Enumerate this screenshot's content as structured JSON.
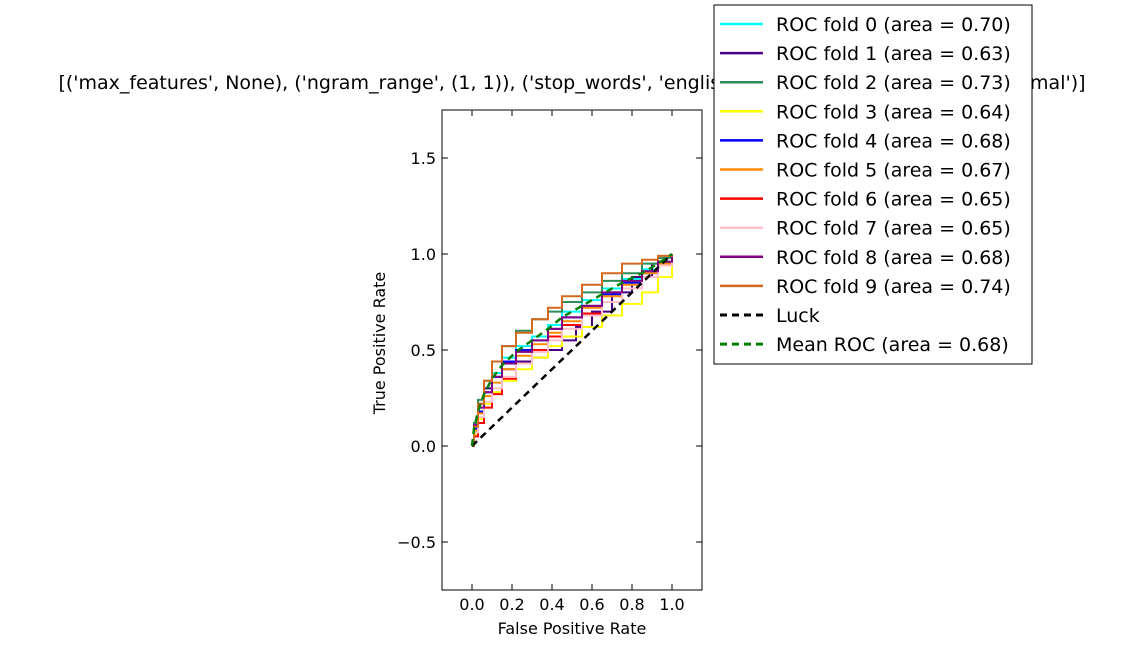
{
  "chart_data": {
    "type": "line",
    "title": "[('max_features', None), ('ngram_range', (1, 1)), ('stop_words', 'english'), ('binary', False), ('norm', 'normal')]",
    "xlabel": "False Positive Rate",
    "ylabel": "True Positive Rate",
    "xlim": [
      -0.15,
      1.15
    ],
    "ylim": [
      -0.75,
      1.75
    ],
    "xticks": [
      "0.0",
      "0.2",
      "0.4",
      "0.6",
      "0.8",
      "1.0"
    ],
    "yticks": [
      "−0.5",
      "0.0",
      "0.5",
      "1.0",
      "1.5"
    ],
    "xtick_values": [
      0.0,
      0.2,
      0.4,
      0.6,
      0.8,
      1.0
    ],
    "ytick_values": [
      -0.5,
      0.0,
      0.5,
      1.0,
      1.5
    ],
    "grid": false,
    "legend_placement": "upper-right-outside",
    "series": [
      {
        "name": "ROC fold 0 (area = 0.70)",
        "color": "#00ffff",
        "style": "solid",
        "x": [
          0,
          0.01,
          0.03,
          0.06,
          0.1,
          0.15,
          0.22,
          0.3,
          0.38,
          0.45,
          0.55,
          0.65,
          0.75,
          0.85,
          0.93,
          1.0
        ],
        "y": [
          0,
          0.1,
          0.2,
          0.3,
          0.38,
          0.46,
          0.52,
          0.57,
          0.63,
          0.7,
          0.76,
          0.82,
          0.87,
          0.92,
          0.96,
          1.0
        ]
      },
      {
        "name": "ROC fold 1 (area = 0.63)",
        "color": "#4b0082",
        "style": "solid",
        "x": [
          0,
          0.01,
          0.03,
          0.06,
          0.1,
          0.15,
          0.22,
          0.3,
          0.38,
          0.45,
          0.52,
          0.6,
          0.7,
          0.8,
          0.9,
          1.0
        ],
        "y": [
          0,
          0.12,
          0.22,
          0.3,
          0.36,
          0.4,
          0.44,
          0.46,
          0.5,
          0.55,
          0.62,
          0.7,
          0.8,
          0.88,
          0.95,
          1.0
        ]
      },
      {
        "name": "ROC fold 2 (area = 0.73)",
        "color": "#2e8b57",
        "style": "solid",
        "x": [
          0,
          0.01,
          0.03,
          0.06,
          0.1,
          0.15,
          0.22,
          0.3,
          0.38,
          0.45,
          0.55,
          0.65,
          0.75,
          0.85,
          0.93,
          1.0
        ],
        "y": [
          0,
          0.12,
          0.24,
          0.34,
          0.44,
          0.52,
          0.6,
          0.66,
          0.7,
          0.75,
          0.8,
          0.86,
          0.9,
          0.95,
          0.98,
          1.0
        ]
      },
      {
        "name": "ROC fold 3 (area = 0.64)",
        "color": "#ffff00",
        "style": "solid",
        "x": [
          0,
          0.01,
          0.03,
          0.06,
          0.1,
          0.15,
          0.22,
          0.3,
          0.38,
          0.45,
          0.55,
          0.65,
          0.75,
          0.85,
          0.93,
          1.0
        ],
        "y": [
          0,
          0.06,
          0.14,
          0.22,
          0.28,
          0.34,
          0.4,
          0.46,
          0.52,
          0.57,
          0.62,
          0.68,
          0.74,
          0.8,
          0.88,
          1.0
        ]
      },
      {
        "name": "ROC fold 4 (area = 0.68)",
        "color": "#0000ff",
        "style": "solid",
        "x": [
          0,
          0.01,
          0.03,
          0.06,
          0.1,
          0.15,
          0.22,
          0.3,
          0.38,
          0.45,
          0.55,
          0.65,
          0.75,
          0.85,
          0.93,
          1.0
        ],
        "y": [
          0,
          0.09,
          0.18,
          0.28,
          0.36,
          0.44,
          0.5,
          0.55,
          0.61,
          0.67,
          0.73,
          0.79,
          0.85,
          0.9,
          0.95,
          1.0
        ]
      },
      {
        "name": "ROC fold 5 (area = 0.67)",
        "color": "#ff8c00",
        "style": "solid",
        "x": [
          0,
          0.01,
          0.03,
          0.06,
          0.1,
          0.15,
          0.22,
          0.3,
          0.38,
          0.45,
          0.55,
          0.65,
          0.75,
          0.85,
          0.93,
          1.0
        ],
        "y": [
          0,
          0.08,
          0.17,
          0.26,
          0.33,
          0.4,
          0.47,
          0.53,
          0.59,
          0.65,
          0.72,
          0.78,
          0.84,
          0.9,
          0.95,
          1.0
        ]
      },
      {
        "name": "ROC fold 6 (area = 0.65)",
        "color": "#ff0000",
        "style": "solid",
        "x": [
          0,
          0.01,
          0.03,
          0.06,
          0.1,
          0.15,
          0.22,
          0.3,
          0.38,
          0.45,
          0.55,
          0.65,
          0.75,
          0.85,
          0.93,
          1.0
        ],
        "y": [
          0,
          0.05,
          0.12,
          0.2,
          0.27,
          0.35,
          0.43,
          0.5,
          0.57,
          0.63,
          0.69,
          0.75,
          0.82,
          0.88,
          0.94,
          1.0
        ]
      },
      {
        "name": "ROC fold 7 (area = 0.65)",
        "color": "#ffc0cb",
        "style": "solid",
        "x": [
          0,
          0.01,
          0.03,
          0.06,
          0.1,
          0.15,
          0.22,
          0.3,
          0.38,
          0.45,
          0.55,
          0.65,
          0.75,
          0.85,
          0.93,
          1.0
        ],
        "y": [
          0,
          0.07,
          0.15,
          0.23,
          0.3,
          0.36,
          0.43,
          0.49,
          0.55,
          0.61,
          0.68,
          0.75,
          0.82,
          0.88,
          0.94,
          1.0
        ]
      },
      {
        "name": "ROC fold 8 (area = 0.68)",
        "color": "#800080",
        "style": "solid",
        "x": [
          0,
          0.01,
          0.03,
          0.06,
          0.1,
          0.15,
          0.22,
          0.3,
          0.38,
          0.45,
          0.55,
          0.65,
          0.75,
          0.85,
          0.93,
          1.0
        ],
        "y": [
          0,
          0.11,
          0.2,
          0.28,
          0.36,
          0.43,
          0.49,
          0.55,
          0.61,
          0.67,
          0.73,
          0.8,
          0.86,
          0.91,
          0.96,
          1.0
        ]
      },
      {
        "name": "ROC fold 9 (area = 0.74)",
        "color": "#d2691e",
        "style": "solid",
        "x": [
          0,
          0.01,
          0.03,
          0.06,
          0.1,
          0.15,
          0.22,
          0.3,
          0.38,
          0.45,
          0.55,
          0.65,
          0.75,
          0.85,
          0.93,
          1.0
        ],
        "y": [
          0,
          0.1,
          0.22,
          0.34,
          0.44,
          0.52,
          0.59,
          0.66,
          0.72,
          0.78,
          0.84,
          0.9,
          0.95,
          0.97,
          0.99,
          1.0
        ]
      },
      {
        "name": "Luck",
        "color": "#000000",
        "style": "dashed",
        "x": [
          0,
          1
        ],
        "y": [
          0,
          1
        ]
      },
      {
        "name": "Mean ROC (area = 0.68)",
        "color": "#008000",
        "style": "dashed",
        "x": [
          0,
          0.01,
          0.03,
          0.06,
          0.1,
          0.15,
          0.22,
          0.3,
          0.38,
          0.45,
          0.55,
          0.65,
          0.75,
          0.85,
          0.93,
          1.0
        ],
        "y": [
          0,
          0.09,
          0.18,
          0.27,
          0.35,
          0.42,
          0.49,
          0.55,
          0.61,
          0.67,
          0.73,
          0.79,
          0.85,
          0.9,
          0.95,
          1.0
        ]
      }
    ]
  }
}
